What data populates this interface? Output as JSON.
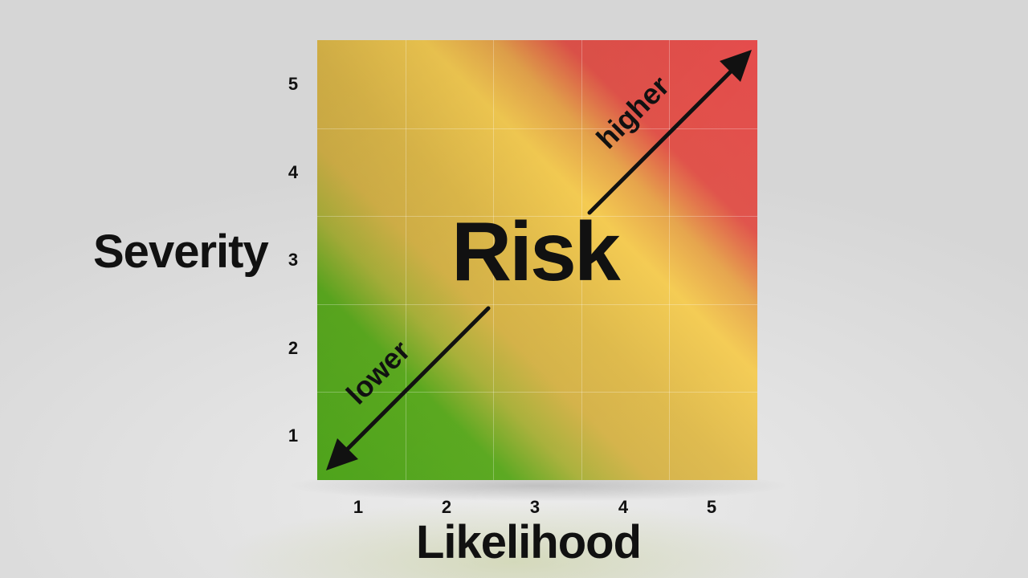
{
  "diagram": {
    "center_label": "Risk",
    "y_axis_title": "Severity",
    "x_axis_title": "Likelihood",
    "higher_label": "higher",
    "lower_label": "lower",
    "y_ticks": [
      "5",
      "4",
      "3",
      "2",
      "1"
    ],
    "x_ticks": [
      "1",
      "2",
      "3",
      "4",
      "5"
    ],
    "colors": {
      "low": "#4ea31c",
      "medium": "#f4cb52",
      "high": "#e44c4c",
      "text": "#111111"
    }
  }
}
